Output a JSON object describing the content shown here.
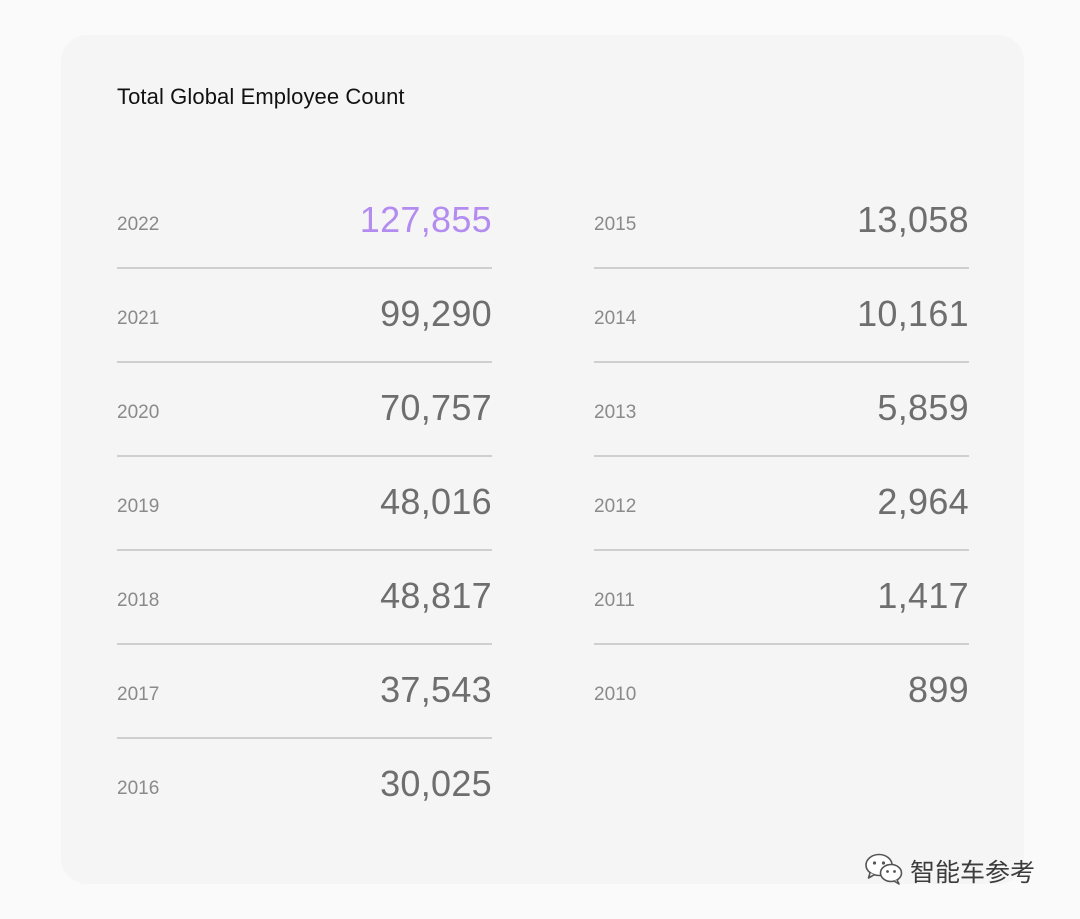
{
  "title": "Total Global Employee Count",
  "left_column": [
    {
      "year": "2022",
      "count": "127,855"
    },
    {
      "year": "2021",
      "count": "99,290"
    },
    {
      "year": "2020",
      "count": "70,757"
    },
    {
      "year": "2019",
      "count": "48,016"
    },
    {
      "year": "2018",
      "count": "48,817"
    },
    {
      "year": "2017",
      "count": "37,543"
    },
    {
      "year": "2016",
      "count": "30,025"
    }
  ],
  "right_column": [
    {
      "year": "2015",
      "count": "13,058"
    },
    {
      "year": "2014",
      "count": "10,161"
    },
    {
      "year": "2013",
      "count": "5,859"
    },
    {
      "year": "2012",
      "count": "2,964"
    },
    {
      "year": "2011",
      "count": "1,417"
    },
    {
      "year": "2010",
      "count": "899"
    }
  ],
  "highlight_color": "#b48cf0",
  "watermark": {
    "text": "智能车参考",
    "icon": "wechat-icon"
  }
}
